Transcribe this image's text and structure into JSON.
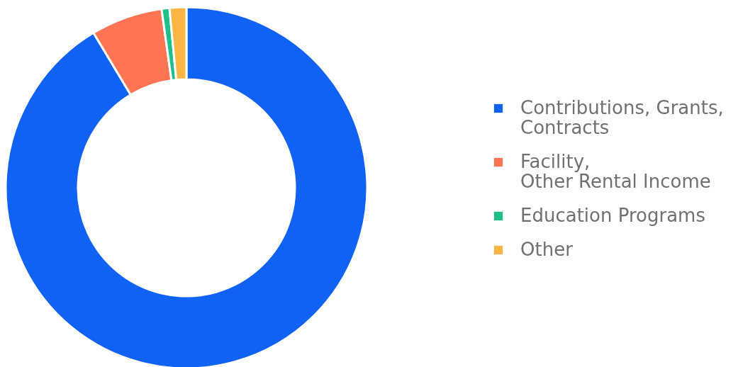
{
  "chart_data": {
    "type": "donut",
    "categories": [
      "Contributions, Grants,\nContracts",
      "Facility,\nOther Rental Income",
      "Education Programs",
      "Other"
    ],
    "values": [
      91.4,
      6.4,
      0.7,
      1.5
    ],
    "colors": [
      "#1062f5",
      "#ff7452",
      "#1fbf8a",
      "#fbb545"
    ],
    "legend": "right"
  }
}
